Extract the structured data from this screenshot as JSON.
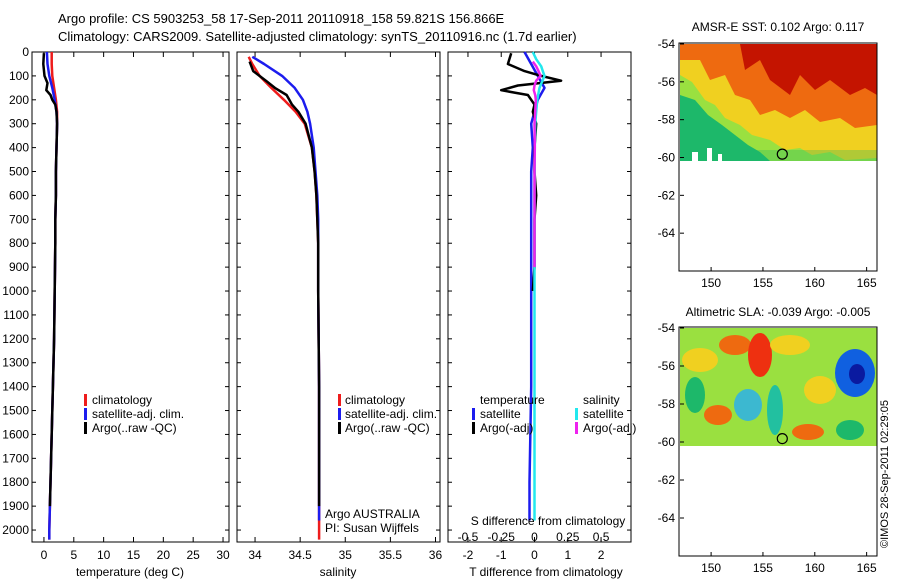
{
  "title_lines": [
    "Argo profile: CS 5903253_58 17-Sep-2011 20110918_158 59.821S 156.866E",
    "Climatology: CARS2009. Satellite-adjusted climatology: synTS_20110916.nc (1.7d earlier)"
  ],
  "footer": {
    "credit_line1": "Argo AUSTRALIA",
    "credit_line2": "PI: Susan Wijffels",
    "timestamp": "©IMOS 28-Sep-2011 02:29:05"
  },
  "colors": {
    "climatology": "#ee1c1c",
    "satellite": "#1c1cee",
    "argo": "#000000",
    "sal_satellite": "#22e8ee",
    "sal_argo": "#ee22ee"
  },
  "chart_data": [
    {
      "id": "temperature",
      "type": "line",
      "xlabel": "temperature (deg C)",
      "x_ticks": [
        "0",
        "5",
        "10",
        "15",
        "20",
        "25",
        "30"
      ],
      "xlim": [
        -2,
        31
      ],
      "ylim": [
        2050,
        0
      ],
      "y_ticks": [
        "0",
        "100",
        "200",
        "300",
        "400",
        "500",
        "600",
        "700",
        "800",
        "900",
        "1000",
        "1100",
        "1200",
        "1300",
        "1400",
        "1500",
        "1600",
        "1700",
        "1800",
        "1900",
        "2000"
      ],
      "legend": [
        "climatology",
        "satellite-adj. clim.",
        "Argo(..raw -QC)"
      ],
      "series": [
        {
          "key": "climatology",
          "color": "#ee1c1c",
          "depth": [
            0,
            50,
            100,
            150,
            200,
            250,
            300,
            400,
            500,
            600,
            700,
            800,
            1000,
            1200,
            1400,
            1600,
            1800,
            2000,
            2040
          ],
          "values": [
            1.3,
            1.3,
            1.4,
            1.7,
            2.0,
            2.2,
            2.2,
            2.1,
            2.0,
            2.0,
            1.9,
            1.9,
            1.8,
            1.7,
            1.5,
            1.3,
            1.1,
            0.9,
            0.9
          ]
        },
        {
          "key": "satellite",
          "color": "#1c1cee",
          "depth": [
            0,
            50,
            100,
            150,
            200,
            250,
            300,
            400,
            500,
            600,
            700,
            800,
            1000,
            1200,
            1400,
            1600,
            1800,
            2000,
            2040
          ],
          "values": [
            0.5,
            0.6,
            0.9,
            1.4,
            1.8,
            2.1,
            2.2,
            2.1,
            2.0,
            2.0,
            1.9,
            1.9,
            1.8,
            1.7,
            1.5,
            1.3,
            1.1,
            0.9,
            0.9
          ]
        },
        {
          "key": "argo",
          "color": "#000000",
          "depth": [
            5,
            50,
            100,
            130,
            160,
            180,
            200,
            220,
            250,
            300,
            400,
            500,
            600,
            700,
            800,
            1000,
            1200,
            1400,
            1600,
            1800,
            1900
          ],
          "values": [
            0.0,
            -0.1,
            0.1,
            0.6,
            0.4,
            1.1,
            1.4,
            1.9,
            2.1,
            2.2,
            2.1,
            2.0,
            2.0,
            1.9,
            1.9,
            1.8,
            1.7,
            1.5,
            1.3,
            1.1,
            1.0
          ]
        }
      ]
    },
    {
      "id": "salinity",
      "type": "line",
      "xlabel": "salinity",
      "x_ticks": [
        "34",
        "34.5",
        "35",
        "35.5",
        "36"
      ],
      "xlim": [
        33.8,
        36.05
      ],
      "ylim": [
        2050,
        0
      ],
      "legend": [
        "climatology",
        "satellite-adj. clim.",
        "Argo(..raw -QC)"
      ],
      "series": [
        {
          "key": "climatology",
          "color": "#ee1c1c",
          "depth": [
            20,
            50,
            100,
            150,
            200,
            250,
            300,
            400,
            500,
            600,
            700,
            800,
            1000,
            1400,
            1800,
            2040
          ],
          "values": [
            33.93,
            33.97,
            34.05,
            34.18,
            34.32,
            34.45,
            34.55,
            34.63,
            34.66,
            34.68,
            34.69,
            34.7,
            34.7,
            34.71,
            34.71,
            34.71
          ]
        },
        {
          "key": "satellite",
          "color": "#1c1cee",
          "depth": [
            20,
            50,
            100,
            150,
            200,
            250,
            300,
            400,
            500,
            600,
            700,
            800,
            1000,
            1400,
            1800,
            1960
          ],
          "values": [
            33.97,
            34.1,
            34.3,
            34.44,
            34.53,
            34.58,
            34.61,
            34.65,
            34.67,
            34.69,
            34.7,
            34.7,
            34.7,
            34.71,
            34.71,
            34.71
          ]
        },
        {
          "key": "argo",
          "color": "#000000",
          "depth": [
            40,
            80,
            120,
            150,
            180,
            200,
            220,
            250,
            300,
            400,
            500,
            600,
            700,
            800,
            1000,
            1400,
            1800,
            1900
          ],
          "values": [
            33.94,
            33.98,
            34.12,
            34.22,
            34.35,
            34.38,
            34.41,
            34.48,
            34.56,
            34.63,
            34.66,
            34.68,
            34.69,
            34.7,
            34.7,
            34.71,
            34.71,
            34.71
          ]
        }
      ]
    },
    {
      "id": "difference",
      "type": "line",
      "xlabel": "T difference from climatology",
      "top_label": "S difference from climatology",
      "x_ticks": [
        "-2",
        "-1",
        "0",
        "1",
        "2"
      ],
      "s_ticks": [
        "-0.5",
        "-0.25",
        "0",
        "0.25",
        "0.5"
      ],
      "xlim": [
        -2.6,
        2.9
      ],
      "ylim": [
        2050,
        0
      ],
      "legend_headers": [
        "temperature",
        "salinity"
      ],
      "legend_left": [
        "satellite",
        "Argo(-adj)"
      ],
      "legend_right": [
        "satellite",
        "Argo(-adj)"
      ],
      "series": [
        {
          "key": "t_satellite",
          "color": "#1c1cee",
          "depth": [
            0,
            50,
            100,
            150,
            200,
            250,
            300,
            400,
            500,
            600,
            800,
            1000,
            1400,
            1800,
            1960
          ],
          "values": [
            -0.3,
            -0.1,
            0.1,
            0.3,
            0.1,
            0.0,
            -0.1,
            -0.05,
            -0.1,
            -0.1,
            -0.1,
            -0.1,
            -0.1,
            -0.15,
            -0.15
          ]
        },
        {
          "key": "t_argo",
          "color": "#000000",
          "depth": [
            5,
            50,
            80,
            100,
            120,
            140,
            160,
            170,
            180,
            200,
            220,
            250,
            300,
            400,
            500,
            600,
            700,
            800,
            900,
            1000
          ],
          "values": [
            -0.7,
            -0.8,
            -0.3,
            0.2,
            0.8,
            -0.5,
            -1.0,
            -0.6,
            -0.2,
            -0.1,
            0.0,
            -0.05,
            0.05,
            0.0,
            0.0,
            0.05,
            0.0,
            0.0,
            0.0,
            -0.05
          ]
        },
        {
          "key": "s_satellite",
          "color": "#22e8ee",
          "depth": [
            0,
            30,
            60,
            80,
            100,
            150,
            200,
            300,
            400,
            600,
            1000,
            1400,
            1800,
            1960
          ],
          "values": [
            -0.05,
            0.05,
            0.2,
            0.25,
            0.3,
            0.15,
            0.08,
            0.02,
            0.01,
            0.0,
            0.0,
            0.0,
            0.0,
            0.0
          ]
        },
        {
          "key": "s_argo",
          "color": "#ee22ee",
          "depth": [
            40,
            60,
            80,
            100,
            120,
            140,
            160,
            180,
            200,
            250,
            300,
            400,
            500,
            600,
            700,
            800,
            900
          ],
          "values": [
            -0.05,
            0.05,
            0.12,
            0.18,
            0.05,
            0.0,
            -0.02,
            0.02,
            0.04,
            0.02,
            0.0,
            0.01,
            0.0,
            0.0,
            0.0,
            0.0,
            0.0
          ]
        }
      ]
    },
    {
      "id": "sst_map",
      "type": "heatmap",
      "title": "AMSR-E SST: 0.102 Argo: 0.117",
      "x_ticks": [
        "150",
        "155",
        "160",
        "165"
      ],
      "y_ticks": [
        "-54",
        "-56",
        "-58",
        "-60",
        "-62",
        "-64"
      ],
      "xlim": [
        147,
        166
      ],
      "ylim": [
        -66,
        -54
      ],
      "marker": {
        "lon": 156.866,
        "lat": -59.821
      }
    },
    {
      "id": "sla_map",
      "type": "heatmap",
      "title": "Altimetric SLA: -0.039 Argo: -0.005",
      "x_ticks": [
        "150",
        "155",
        "160",
        "165"
      ],
      "y_ticks": [
        "-54",
        "-56",
        "-58",
        "-60",
        "-62",
        "-64"
      ],
      "xlim": [
        147,
        166
      ],
      "ylim": [
        -66,
        -54
      ],
      "marker": {
        "lon": 156.866,
        "lat": -59.821
      }
    }
  ]
}
